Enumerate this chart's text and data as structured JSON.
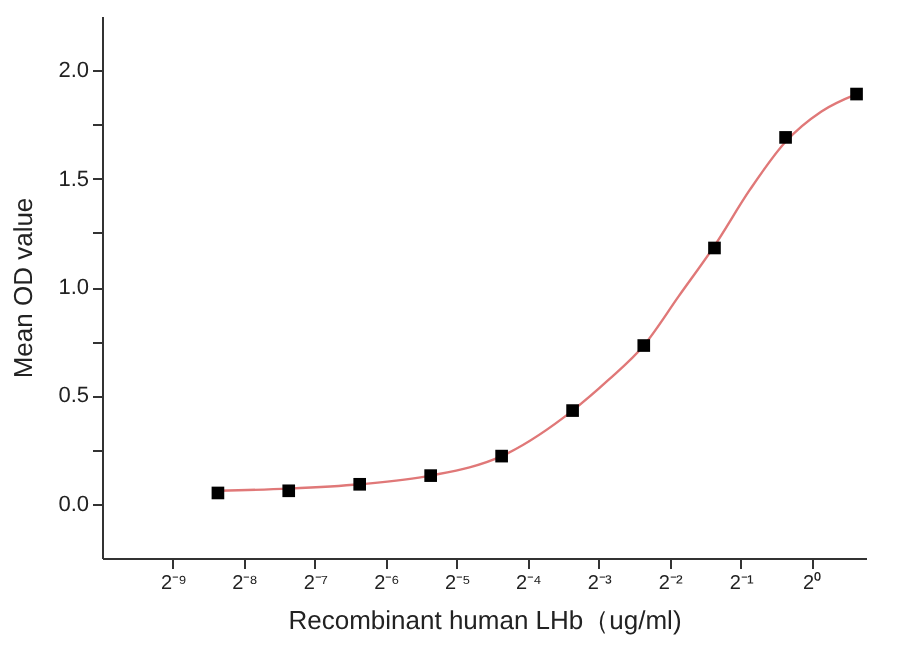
{
  "chart_data": {
    "type": "scatter",
    "xlabel": "Recombinant human  LHb（ug/ml)",
    "ylabel": "Mean OD value",
    "log": "x",
    "marker": "square",
    "grid": false,
    "xlim": [
      0.0009765625,
      1.7
    ],
    "xticks": [
      {
        "value": 0.001953125,
        "label": "2⁻⁹"
      },
      {
        "value": 0.00390625,
        "label": "2⁻⁸"
      },
      {
        "value": 0.0078125,
        "label": "2⁻⁷"
      },
      {
        "value": 0.015625,
        "label": "2⁻⁶"
      },
      {
        "value": 0.03125,
        "label": "2⁻⁵"
      },
      {
        "value": 0.0625,
        "label": "2⁻⁴"
      },
      {
        "value": 0.125,
        "label": "2⁻³"
      },
      {
        "value": 0.25,
        "label": "2⁻²"
      },
      {
        "value": 0.5,
        "label": "2⁻¹"
      },
      {
        "value": 1,
        "label": "2⁰"
      }
    ],
    "ylim": [
      -0.25,
      2.25
    ],
    "yticks": [
      {
        "value": 0,
        "label": "0.0"
      },
      {
        "value": 0.25,
        "label": null
      },
      {
        "value": 0.5,
        "label": "0.5"
      },
      {
        "value": 0.75,
        "label": null
      },
      {
        "value": 1,
        "label": "1.0"
      },
      {
        "value": 1.25,
        "label": null
      },
      {
        "value": 1.5,
        "label": "1.5"
      },
      {
        "value": 1.75,
        "label": null
      },
      {
        "value": 2,
        "label": "2.0"
      }
    ],
    "series": [
      {
        "type": "line",
        "color": "#e07878",
        "marker": "none",
        "x": [
          0.00303,
          0.00605,
          0.0121,
          0.0242,
          0.0484,
          0.0968,
          0.137,
          0.194,
          0.274,
          0.387,
          0.548,
          0.775,
          1.1,
          1.55
        ],
        "values": [
          0.06,
          0.07,
          0.09,
          0.13,
          0.22,
          0.43,
          0.57,
          0.73,
          0.96,
          1.19,
          1.45,
          1.67,
          1.81,
          1.89
        ]
      },
      {
        "color": "#000000",
        "x": [
          0.00303,
          0.00605,
          0.0121,
          0.0242,
          0.0484,
          0.0968,
          0.194,
          0.387,
          0.775,
          1.55
        ],
        "values": [
          0.05,
          0.06,
          0.09,
          0.13,
          0.22,
          0.43,
          0.73,
          1.18,
          1.69,
          1.89
        ]
      }
    ]
  }
}
